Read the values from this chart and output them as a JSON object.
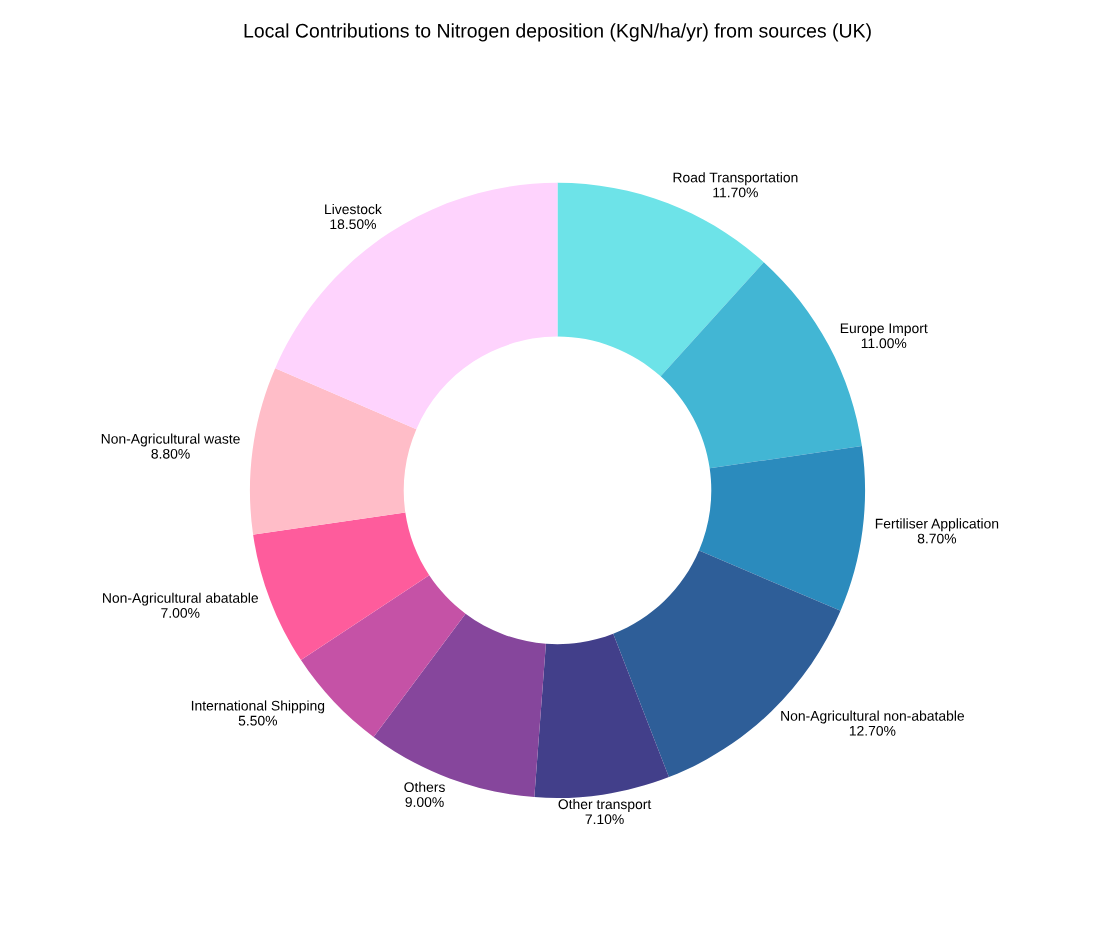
{
  "chart_data": {
    "type": "donut",
    "title": "Local Contributions to Nitrogen deposition (KgN/ha/yr) from sources (UK)",
    "categories": [
      "Road Transportation",
      "Europe Import",
      "Fertiliser Application",
      "Non-Agricultural non-abatable",
      "Other transport",
      "Others",
      "International Shipping",
      "Non-Agricultural abatable",
      "Non-Agricultural waste",
      "Livestock"
    ],
    "values": [
      11.7,
      11.0,
      8.7,
      12.7,
      7.1,
      9.0,
      5.5,
      7.0,
      8.8,
      18.5
    ],
    "value_labels": [
      "11.70%",
      "11.00%",
      "8.70%",
      "12.70%",
      "7.10%",
      "9.00%",
      "5.50%",
      "7.00%",
      "8.80%",
      "18.50%"
    ],
    "colors": [
      "#6de3e8",
      "#42b6d4",
      "#2b8bbd",
      "#2e5e98",
      "#423f8a",
      "#86469c",
      "#c552a6",
      "#fe5c9c",
      "#ffbdc8",
      "#fed3fd"
    ],
    "legend": false
  }
}
